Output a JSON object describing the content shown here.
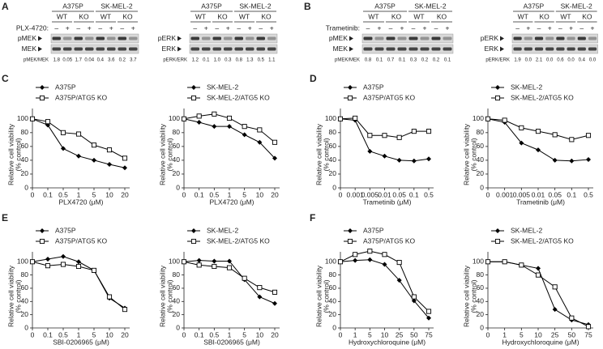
{
  "blots": [
    {
      "panel": "A",
      "groups": [
        "A375P",
        "SK-MEL-2"
      ],
      "genotypes": [
        "WT",
        "KO",
        "WT",
        "KO"
      ],
      "treatment_label": "PLX-4720:",
      "treatment": [
        "–",
        "+",
        "–",
        "+",
        "–",
        "+",
        "–",
        "+"
      ],
      "rows": [
        "pMEK",
        "MEK"
      ],
      "ratio_label": "pMEK/MEK",
      "ratios": [
        "1.8",
        "0.05",
        "1.7",
        "0.04",
        "0.4",
        "3.6",
        "0.2",
        "3.7"
      ]
    },
    {
      "groups": [
        "A375P",
        "SK-MEL-2"
      ],
      "genotypes": [
        "WT",
        "KO",
        "WT",
        "KO"
      ],
      "treatment": [
        "–",
        "+",
        "–",
        "+",
        "–",
        "+",
        "–",
        "+"
      ],
      "rows": [
        "pERK",
        "ERK"
      ],
      "ratio_label": "pERK/ERK",
      "ratios": [
        "1.2",
        "0.1",
        "1.0",
        "0.3",
        "0.8",
        "1.3",
        "0.5",
        "1.1"
      ]
    },
    {
      "panel": "B",
      "groups": [
        "A375P",
        "SK-MEL-2"
      ],
      "genotypes": [
        "WT",
        "KO",
        "WT",
        "KO"
      ],
      "treatment_label": "Trametinib:",
      "treatment": [
        "–",
        "+",
        "–",
        "+",
        "–",
        "+",
        "–",
        "+"
      ],
      "rows": [
        "pMEK",
        "MEK"
      ],
      "ratio_label": "pMEK/MEK",
      "ratios": [
        "0.8",
        "0.1",
        "0.7",
        "0.1",
        "0.3",
        "0.2",
        "0.2",
        "0.1"
      ]
    },
    {
      "groups": [
        "A375P",
        "SK-MEL-2"
      ],
      "genotypes": [
        "WT",
        "KO",
        "WT",
        "KO"
      ],
      "treatment": [
        "–",
        "+",
        "–",
        "+",
        "–",
        "+",
        "–",
        "+"
      ],
      "rows": [
        "pERK",
        "ERK"
      ],
      "ratio_label": "pERK/ERK",
      "ratios": [
        "1.9",
        "0.0",
        "2.1",
        "0.0",
        "0.6",
        "0.0",
        "0.4",
        "0.0"
      ]
    }
  ],
  "chart_data": [
    {
      "type": "line",
      "panel": "C",
      "xlabel": "PLX4720 (μM)",
      "ylabel": [
        "Relative cell viability",
        "(% control)"
      ],
      "categories": [
        "0",
        "0.1",
        "0.5",
        "1",
        "5",
        "10",
        "20"
      ],
      "ylim": [
        0,
        115
      ],
      "yticks": [
        0,
        20,
        40,
        60,
        80,
        100
      ],
      "series": [
        {
          "name": "A375P",
          "color": "#000000",
          "marker": "diamond",
          "values": [
            100,
            91,
            57,
            46,
            40,
            34,
            29
          ]
        },
        {
          "name": "A375P/ATG5 KO",
          "color": "#000000",
          "marker": "square",
          "values": [
            100,
            96,
            80,
            78,
            62,
            55,
            43
          ]
        }
      ]
    },
    {
      "type": "line",
      "xlabel": "PLX4720 (μM)",
      "ylabel": [
        "Relative cell viability",
        "(% control)"
      ],
      "categories": [
        "0",
        "0.1",
        "0.5",
        "1",
        "5",
        "10",
        "20"
      ],
      "ylim": [
        0,
        115
      ],
      "yticks": [
        0,
        20,
        40,
        60,
        80,
        100
      ],
      "series": [
        {
          "name": "SK-MEL-2",
          "color": "#000000",
          "marker": "diamond",
          "values": [
            100,
            95,
            89,
            89,
            77,
            66,
            43
          ]
        },
        {
          "name": "SK-MEL-2/ATG5 KO",
          "color": "#000000",
          "marker": "square",
          "values": [
            100,
            104,
            107,
            101,
            89,
            84,
            66
          ]
        }
      ]
    },
    {
      "type": "line",
      "panel": "D",
      "xlabel": "Trametinib (μM)",
      "ylabel": [
        "Relative cell viability",
        "(% control)"
      ],
      "categories": [
        "0",
        "0.001",
        "0.005",
        "0.01",
        "0.05",
        "0.1",
        "0.5"
      ],
      "ylim": [
        0,
        115
      ],
      "yticks": [
        0,
        20,
        40,
        60,
        80,
        100
      ],
      "series": [
        {
          "name": "A375P",
          "color": "#000000",
          "marker": "diamond",
          "values": [
            100,
            98,
            53,
            46,
            40,
            39,
            42
          ]
        },
        {
          "name": "A375P/ATG5 KO",
          "color": "#000000",
          "marker": "square",
          "values": [
            100,
            101,
            76,
            76,
            73,
            82,
            82
          ]
        }
      ]
    },
    {
      "type": "line",
      "xlabel": "Trametinib (μM)",
      "ylabel": [
        "Relative cell viability",
        "(% control)"
      ],
      "categories": [
        "0",
        "0.001",
        "0.005",
        "0.01",
        "0.05",
        "0.1",
        "0.5"
      ],
      "ylim": [
        0,
        115
      ],
      "yticks": [
        0,
        20,
        40,
        60,
        80,
        100
      ],
      "series": [
        {
          "name": "SK-MEL-2",
          "color": "#000000",
          "marker": "diamond",
          "values": [
            100,
            95,
            65,
            55,
            40,
            39,
            41
          ]
        },
        {
          "name": "SK-MEL-2/ATG5 KO",
          "color": "#000000",
          "marker": "square",
          "values": [
            100,
            98,
            87,
            82,
            77,
            70,
            76
          ]
        }
      ]
    },
    {
      "type": "line",
      "panel": "E",
      "xlabel": "SBI-0206965 (μM)",
      "ylabel": [
        "Relative cell viability",
        "(% control)"
      ],
      "categories": [
        "0",
        "0.1",
        "0.5",
        "1",
        "5",
        "10",
        "20"
      ],
      "ylim": [
        0,
        115
      ],
      "yticks": [
        0,
        20,
        40,
        60,
        80,
        100
      ],
      "series": [
        {
          "name": "A375P",
          "color": "#000000",
          "marker": "diamond",
          "values": [
            100,
            104,
            108,
            100,
            87,
            45,
            30
          ]
        },
        {
          "name": "A375P/ATG5 KO",
          "color": "#000000",
          "marker": "square",
          "values": [
            100,
            94,
            96,
            93,
            87,
            47,
            28
          ]
        }
      ]
    },
    {
      "type": "line",
      "xlabel": "SBI-0206965 (μM)",
      "ylabel": [
        "Relative cell viability",
        "(% control)"
      ],
      "categories": [
        "0",
        "0.1",
        "0.5",
        "1",
        "5",
        "10",
        "20"
      ],
      "ylim": [
        0,
        115
      ],
      "yticks": [
        0,
        20,
        40,
        60,
        80,
        100
      ],
      "series": [
        {
          "name": "SK-MEL-2",
          "color": "#000000",
          "marker": "diamond",
          "values": [
            100,
            102,
            101,
            101,
            73,
            47,
            37
          ]
        },
        {
          "name": "SK-MEL-2/ATG5 KO",
          "color": "#000000",
          "marker": "square",
          "values": [
            100,
            95,
            93,
            91,
            75,
            61,
            54
          ]
        }
      ]
    },
    {
      "type": "line",
      "panel": "F",
      "xlabel": "Hydroxychloroquine (μM)",
      "ylabel": [
        "Relative cell viability",
        "(% control)"
      ],
      "categories": [
        "0",
        "1",
        "5",
        "10",
        "25",
        "50",
        "75"
      ],
      "ylim": [
        0,
        115
      ],
      "yticks": [
        0,
        20,
        40,
        60,
        80,
        100
      ],
      "series": [
        {
          "name": "A375P",
          "color": "#000000",
          "marker": "diamond",
          "values": [
            100,
            102,
            103,
            96,
            72,
            41,
            15
          ]
        },
        {
          "name": "A375P/ATG5 KO",
          "color": "#000000",
          "marker": "square",
          "values": [
            100,
            111,
            116,
            111,
            99,
            47,
            25
          ]
        }
      ]
    },
    {
      "type": "line",
      "xlabel": "Hydroxychloroquine (μM)",
      "ylabel": [
        "Relative cell viability",
        "(% control)"
      ],
      "categories": [
        "0",
        "1",
        "5",
        "10",
        "25",
        "50",
        "75"
      ],
      "ylim": [
        0,
        115
      ],
      "yticks": [
        0,
        20,
        40,
        60,
        80,
        100
      ],
      "series": [
        {
          "name": "SK-MEL-2",
          "color": "#000000",
          "marker": "diamond",
          "values": [
            100,
            100,
            95,
            90,
            28,
            12,
            5
          ]
        },
        {
          "name": "SK-MEL-2/ATG5 KO",
          "color": "#000000",
          "marker": "square",
          "values": [
            100,
            100,
            95,
            80,
            62,
            15,
            2
          ]
        }
      ]
    }
  ]
}
